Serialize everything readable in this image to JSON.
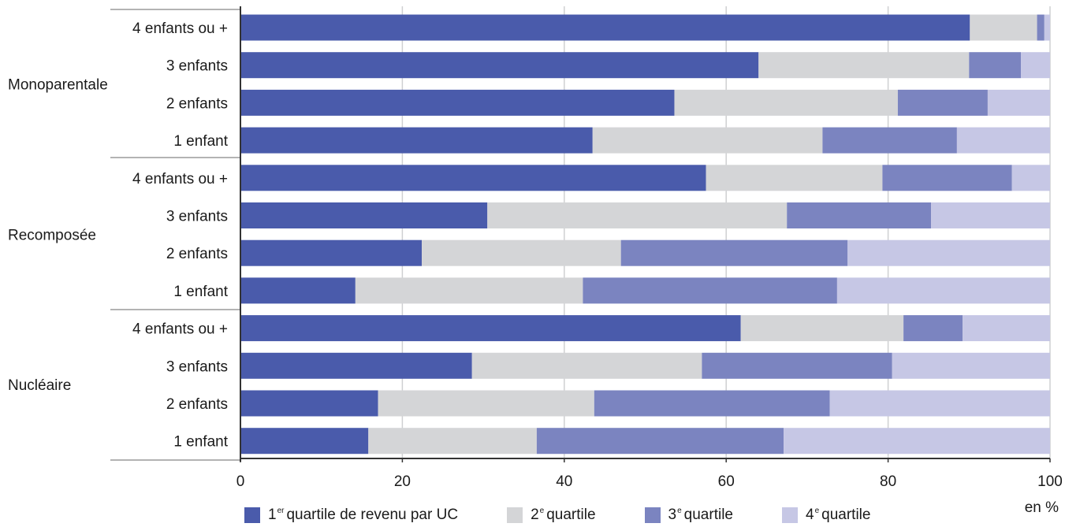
{
  "chart_data": {
    "type": "bar",
    "orientation": "horizontal",
    "stacked": true,
    "xlim": [
      0,
      100
    ],
    "xticks": [
      "0",
      "20",
      "40",
      "60",
      "80",
      "100"
    ],
    "unit_label": "en %",
    "grid": true,
    "legend_position": "bottom",
    "groups": [
      {
        "name": "Monoparentale",
        "categories": [
          "4 enfants ou +",
          "3 enfants",
          "2 enfants",
          "1 enfant"
        ],
        "series": [
          {
            "values": [
              90.1,
              64.0,
              53.6,
              43.5
            ]
          },
          {
            "values": [
              8.3,
              26.0,
              27.6,
              28.4
            ]
          },
          {
            "values": [
              0.9,
              6.4,
              11.1,
              16.6
            ]
          },
          {
            "values": [
              0.7,
              3.6,
              7.7,
              11.5
            ]
          }
        ]
      },
      {
        "name": "Recomposée",
        "categories": [
          "4 enfants ou +",
          "3 enfants",
          "2 enfants",
          "1 enfant"
        ],
        "series": [
          {
            "values": [
              57.5,
              30.5,
              22.4,
              14.2
            ]
          },
          {
            "values": [
              21.8,
              37.0,
              24.6,
              28.1
            ]
          },
          {
            "values": [
              16.0,
              17.8,
              28.0,
              31.4
            ]
          },
          {
            "values": [
              4.7,
              14.7,
              25.0,
              26.3
            ]
          }
        ]
      },
      {
        "name": "Nucléaire",
        "categories": [
          "4 enfants ou +",
          "3 enfants",
          "2 enfants",
          "1 enfant"
        ],
        "series": [
          {
            "values": [
              61.8,
              28.6,
              17.0,
              15.8
            ]
          },
          {
            "values": [
              20.1,
              28.4,
              26.7,
              20.8
            ]
          },
          {
            "values": [
              7.3,
              23.5,
              29.1,
              30.5
            ]
          },
          {
            "values": [
              10.8,
              19.5,
              27.2,
              32.9
            ]
          }
        ]
      }
    ],
    "legend": [
      {
        "num": "1",
        "sup": "er",
        "text": "quartile de revenu par UC"
      },
      {
        "num": "2",
        "sup": "e",
        "text": "quartile"
      },
      {
        "num": "3",
        "sup": "e",
        "text": "quartile"
      },
      {
        "num": "4",
        "sup": "e",
        "text": "quartile"
      }
    ],
    "colors": [
      "#4a5bab",
      "#d4d5d7",
      "#7b84c0",
      "#c6c7e5"
    ],
    "grid_color": "#cfd0d2",
    "axis_color": "#333333",
    "separator_color": "#9a9a9a"
  }
}
